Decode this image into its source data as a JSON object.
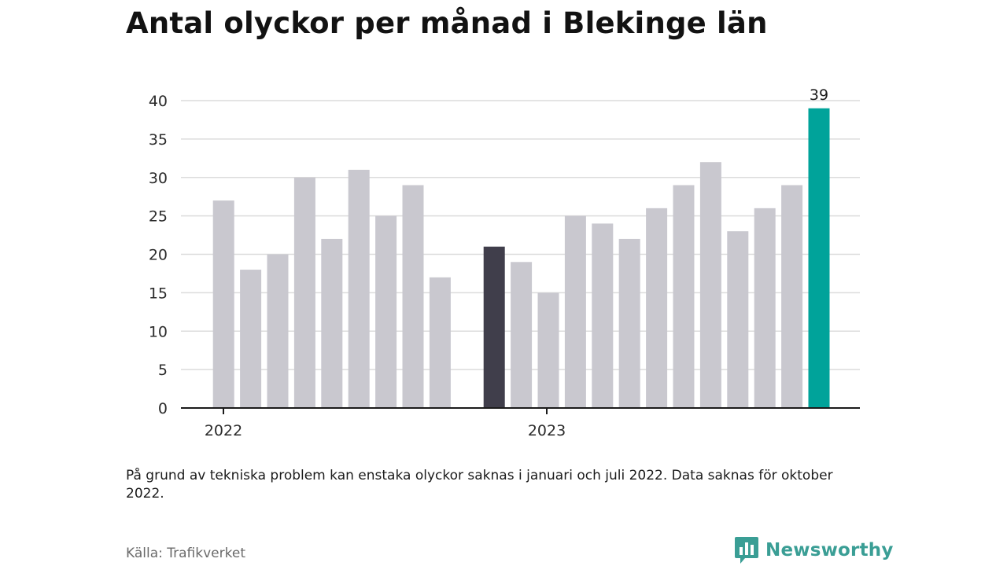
{
  "title": "Antal olyckor per månad i Blekinge län",
  "note": "På grund av tekniska problem kan enstaka olyckor saknas i januari och juli 2022. Data saknas för oktober 2022.",
  "source": "Källa: Trafikverket",
  "brand": {
    "name": "Newsworthy",
    "logo_icon": "bar-chart-speech-bubble-icon"
  },
  "colors": {
    "default_bar": "#c9c8cf",
    "highlight_prev_year": "#403e4b",
    "highlight_current": "#00a39a",
    "grid": "#dcdcdc",
    "axis": "#1b1b1b"
  },
  "chart_data": {
    "type": "bar",
    "x_tick_labels": [
      "2022",
      "2023"
    ],
    "ylim": [
      0,
      40
    ],
    "yticks": [
      0,
      5,
      10,
      15,
      20,
      25,
      30,
      35,
      40
    ],
    "grid": true,
    "series": [
      {
        "values": [
          27,
          18,
          20,
          30,
          22,
          31,
          25,
          29,
          17,
          null,
          21,
          19,
          15,
          25,
          24,
          22,
          26,
          29,
          32,
          23,
          26,
          29,
          39
        ],
        "highlight": {
          "10": "highlight_prev_year",
          "22": "highlight_current"
        }
      }
    ],
    "data_labels": [
      {
        "index": 22,
        "text": "39"
      }
    ]
  }
}
